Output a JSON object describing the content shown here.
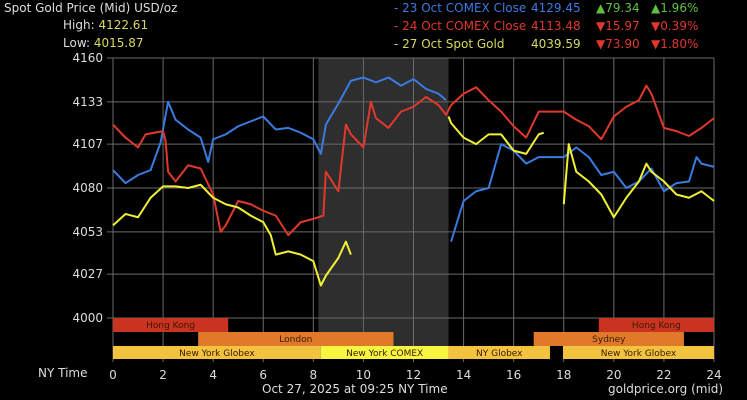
{
  "header": {
    "title": "Spot Gold Price (Mid) USD/oz",
    "high_label": "High:",
    "high_value": "4122.61",
    "low_label": "Low:",
    "low_value": "4015.87"
  },
  "legend": [
    {
      "label": "- 23 Oct COMEX Close",
      "price": "4129.45",
      "change": "▲79.34",
      "pct": "▲1.96%",
      "color": "#3a7be0",
      "change_color": "#5ec040"
    },
    {
      "label": "- 24 Oct COMEX Close",
      "price": "4113.48",
      "change": "▼15.97",
      "pct": "▼0.39%",
      "color": "#e0392c",
      "change_color": "#e0392c"
    },
    {
      "label": "- 27 Oct Spot Gold",
      "price": "4039.59",
      "change": "▼73.90",
      "pct": "▼1.80%",
      "color": "#d8d860",
      "change_color": "#e0392c"
    }
  ],
  "footer": {
    "timestamp": "Oct 27, 2025 at 09:25 NY Time",
    "source": "goldprice.org (mid)"
  },
  "chart_data": {
    "type": "line",
    "xlabel": "NY Time",
    "ylabel": "",
    "xlim": [
      0,
      24
    ],
    "ylim": [
      4000,
      4160
    ],
    "xticks": [
      "0",
      "2",
      "4",
      "6",
      "8",
      "10",
      "12",
      "14",
      "16",
      "18",
      "20",
      "22",
      "24"
    ],
    "yticks": [
      "4160",
      "4133",
      "4107",
      "4080",
      "4053",
      "4027",
      "4000"
    ],
    "grid": true,
    "shaded_hours": [
      8.2,
      13.4
    ],
    "sessions": [
      {
        "name": "Hong Kong",
        "row": 0,
        "start": 0,
        "end": 4.6,
        "color": "#c9331f"
      },
      {
        "name": "Hong Kong",
        "row": 0,
        "start": 19.4,
        "end": 24,
        "color": "#c9331f"
      },
      {
        "name": "London",
        "row": 1,
        "start": 3.4,
        "end": 11.2,
        "color": "#e07a2a"
      },
      {
        "name": "Sydney",
        "row": 1,
        "start": 16.8,
        "end": 22.8,
        "color": "#e07a2a"
      },
      {
        "name": "New York Globex",
        "row": 2,
        "start": 0,
        "end": 8.3,
        "color": "#f3c23e"
      },
      {
        "name": "New York COMEX",
        "row": 2,
        "start": 8.3,
        "end": 13.4,
        "color": "#f6f640"
      },
      {
        "name": "NY Globex",
        "row": 2,
        "start": 13.4,
        "end": 17.45,
        "color": "#f3c23e"
      },
      {
        "name": "New York Globex",
        "row": 2,
        "start": 17.97,
        "end": 24,
        "color": "#f3c23e"
      }
    ],
    "series": [
      {
        "name": "23 Oct COMEX Close",
        "color": "#3a7be0",
        "segments": [
          [
            [
              0,
              4091
            ],
            [
              0.5,
              4083
            ],
            [
              1,
              4088
            ],
            [
              1.5,
              4091
            ],
            [
              1.9,
              4108
            ],
            [
              2.2,
              4133
            ],
            [
              2.5,
              4122
            ],
            [
              3,
              4116
            ],
            [
              3.5,
              4111
            ],
            [
              3.8,
              4096
            ],
            [
              4,
              4110
            ],
            [
              4.5,
              4113
            ],
            [
              5,
              4118
            ],
            [
              5.5,
              4121
            ],
            [
              6,
              4124
            ],
            [
              6.5,
              4116
            ],
            [
              7,
              4117
            ],
            [
              7.5,
              4114
            ],
            [
              8,
              4110
            ],
            [
              8.3,
              4101
            ],
            [
              8.5,
              4119
            ],
            [
              9,
              4132
            ],
            [
              9.5,
              4146
            ],
            [
              10,
              4148
            ],
            [
              10.5,
              4145
            ],
            [
              11,
              4148
            ],
            [
              11.5,
              4143
            ],
            [
              12,
              4147
            ],
            [
              12.5,
              4141
            ],
            [
              13,
              4138
            ],
            [
              13.3,
              4134
            ]
          ],
          [
            [
              13.5,
              4047
            ],
            [
              14,
              4072
            ],
            [
              14.5,
              4078
            ],
            [
              15,
              4080
            ],
            [
              15.5,
              4107
            ],
            [
              16,
              4103
            ],
            [
              16.5,
              4095
            ],
            [
              17,
              4099
            ],
            [
              18,
              4099
            ],
            [
              18.5,
              4105
            ],
            [
              19,
              4099
            ],
            [
              19.5,
              4088
            ],
            [
              20,
              4090
            ],
            [
              20.5,
              4080
            ],
            [
              21,
              4084
            ],
            [
              21.5,
              4092
            ],
            [
              22,
              4078
            ],
            [
              22.5,
              4083
            ],
            [
              23,
              4084
            ],
            [
              23.3,
              4099
            ],
            [
              23.5,
              4095
            ],
            [
              24,
              4093
            ]
          ]
        ]
      },
      {
        "name": "24 Oct COMEX Close",
        "color": "#e0392c",
        "segments": [
          [
            [
              0,
              4119
            ],
            [
              0.5,
              4111
            ],
            [
              1,
              4105
            ],
            [
              1.3,
              4113
            ],
            [
              2,
              4115
            ],
            [
              2.1,
              4109
            ],
            [
              2.2,
              4090
            ],
            [
              2.5,
              4084
            ],
            [
              3,
              4094
            ],
            [
              3.5,
              4092
            ],
            [
              4,
              4076
            ],
            [
              4.3,
              4053
            ],
            [
              4.5,
              4057
            ],
            [
              5,
              4072
            ],
            [
              5.5,
              4070
            ],
            [
              6,
              4066
            ],
            [
              6.5,
              4063
            ],
            [
              7,
              4051
            ],
            [
              7.5,
              4059
            ],
            [
              8,
              4061
            ],
            [
              8.4,
              4063
            ],
            [
              8.5,
              4090
            ],
            [
              9,
              4078
            ],
            [
              9.3,
              4119
            ],
            [
              9.5,
              4113
            ],
            [
              10,
              4105
            ],
            [
              10.3,
              4133
            ],
            [
              10.5,
              4123
            ],
            [
              11,
              4117
            ],
            [
              11.5,
              4127
            ],
            [
              12,
              4130
            ],
            [
              12.5,
              4136
            ],
            [
              13,
              4131
            ],
            [
              13.3,
              4125
            ],
            [
              13.5,
              4131
            ],
            [
              14,
              4138
            ],
            [
              14.5,
              4142
            ],
            [
              15,
              4134
            ],
            [
              15.5,
              4127
            ],
            [
              16,
              4118
            ],
            [
              16.5,
              4111
            ],
            [
              17,
              4127
            ],
            [
              18,
              4127
            ],
            [
              18.5,
              4122
            ],
            [
              19,
              4118
            ],
            [
              19.5,
              4110
            ],
            [
              20,
              4124
            ],
            [
              20.5,
              4130
            ],
            [
              21,
              4134
            ],
            [
              21.3,
              4143
            ],
            [
              21.5,
              4138
            ],
            [
              22,
              4117
            ],
            [
              22.5,
              4115
            ],
            [
              23,
              4112
            ],
            [
              23.5,
              4117
            ],
            [
              24,
              4123
            ]
          ]
        ]
      },
      {
        "name": "27 Oct Spot Gold",
        "color": "#f0f035",
        "segments": [
          [
            [
              0,
              4057
            ],
            [
              0.5,
              4064
            ],
            [
              1,
              4062
            ],
            [
              1.5,
              4074
            ],
            [
              2,
              4081
            ],
            [
              2.5,
              4081
            ],
            [
              3,
              4080
            ],
            [
              3.5,
              4082
            ],
            [
              4,
              4074
            ],
            [
              4.5,
              4070
            ],
            [
              5,
              4068
            ],
            [
              5.5,
              4063
            ],
            [
              6,
              4059
            ],
            [
              6.3,
              4051
            ],
            [
              6.5,
              4039
            ],
            [
              7,
              4041
            ],
            [
              7.5,
              4039
            ],
            [
              8,
              4035
            ],
            [
              8.3,
              4020
            ],
            [
              8.5,
              4026
            ],
            [
              9,
              4037
            ],
            [
              9.3,
              4047
            ],
            [
              9.5,
              4039
            ]
          ],
          [
            [
              13.4,
              4124
            ],
            [
              13.5,
              4120
            ],
            [
              14,
              4111
            ],
            [
              14.5,
              4107
            ],
            [
              15,
              4113
            ],
            [
              15.5,
              4113
            ],
            [
              16,
              4103
            ],
            [
              16.5,
              4101
            ],
            [
              17,
              4113
            ],
            [
              17.2,
              4114
            ]
          ],
          [
            [
              18,
              4070
            ],
            [
              18.2,
              4107
            ],
            [
              18.5,
              4090
            ],
            [
              19,
              4084
            ],
            [
              19.5,
              4076
            ],
            [
              20,
              4062
            ],
            [
              20.5,
              4074
            ],
            [
              21,
              4084
            ],
            [
              21.3,
              4095
            ],
            [
              21.5,
              4090
            ],
            [
              22,
              4084
            ],
            [
              22.5,
              4076
            ],
            [
              23,
              4074
            ],
            [
              23.5,
              4078
            ],
            [
              24,
              4072
            ]
          ]
        ]
      }
    ]
  }
}
